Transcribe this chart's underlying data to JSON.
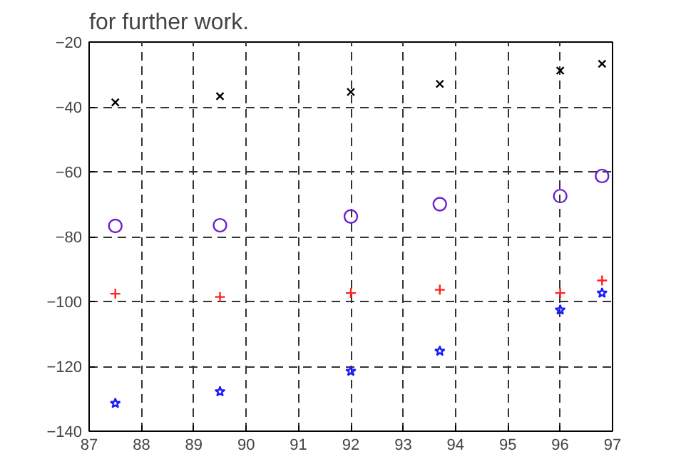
{
  "chart_data": {
    "type": "scatter",
    "annotations": [
      "for further work."
    ],
    "x": [
      87.5,
      89.5,
      92,
      93.7,
      96,
      96.8
    ],
    "series": [
      {
        "color": "#000000",
        "marker": "x",
        "values": [
          -38.6,
          -36.7,
          -35.4,
          -32.9,
          -28.8,
          -26.7
        ]
      },
      {
        "color": "#6a1fd0",
        "marker": "circle",
        "values": [
          -76.7,
          -76.5,
          -73.8,
          -70,
          -67.5,
          -61.3
        ]
      },
      {
        "color": "#ff2020",
        "marker": "cross",
        "values": [
          -97.6,
          -98.6,
          -97.4,
          -96.4,
          -97.4,
          -93.5
        ]
      },
      {
        "color": "#1a1aff",
        "marker": "star",
        "values": [
          -131.4,
          -127.8,
          -121.5,
          -115.3,
          -102.6,
          -97.4
        ]
      }
    ],
    "xlim": [
      87,
      97
    ],
    "xticks": [
      87,
      88,
      89,
      90,
      91,
      92,
      93,
      94,
      95,
      96,
      97
    ],
    "ylim": [
      -140,
      -20
    ],
    "yticks": [
      -140,
      -120,
      -100,
      -80,
      -60,
      -40,
      -20
    ],
    "grid": true,
    "line_style": "dashed"
  }
}
